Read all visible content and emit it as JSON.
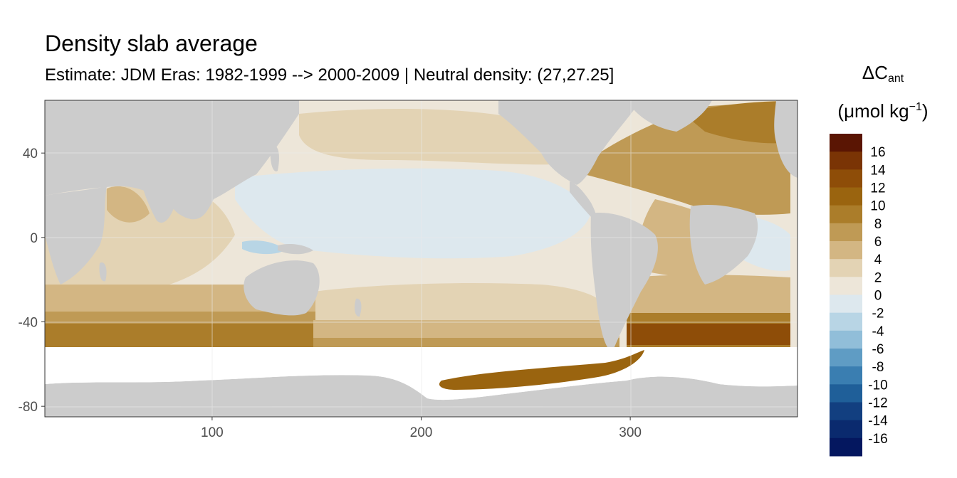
{
  "title": "Density slab average",
  "subtitle": "Estimate: JDM Eras: 1982-1999 --> 2000-2009 | Neutral density: (27,27.25]",
  "legend": {
    "title_symbol": "ΔC",
    "title_sub": "ant",
    "unit_open": "(μmol kg",
    "unit_sup": "−1",
    "unit_close": ")",
    "bins": [
      {
        "label": "16",
        "color": "#5a1503"
      },
      {
        "label": "14",
        "color": "#7a3405"
      },
      {
        "label": "12",
        "color": "#8e4d08"
      },
      {
        "label": "10",
        "color": "#9a640f"
      },
      {
        "label": "8",
        "color": "#ab7d2a"
      },
      {
        "label": "6",
        "color": "#bf9a55"
      },
      {
        "label": "4",
        "color": "#d3b683"
      },
      {
        "label": "2",
        "color": "#e3d3b4"
      },
      {
        "label": "0",
        "color": "#ede6d9"
      },
      {
        "label": "-2",
        "color": "#dde8ee"
      },
      {
        "label": "-4",
        "color": "#b8d5e5"
      },
      {
        "label": "-6",
        "color": "#91bed9"
      },
      {
        "label": "-8",
        "color": "#5f9cc4"
      },
      {
        "label": "-10",
        "color": "#3a7eb1"
      },
      {
        "label": "-12",
        "color": "#1f5f99"
      },
      {
        "label": "-14",
        "color": "#123f80"
      },
      {
        "label": "-16",
        "color": "#0a2a6e"
      },
      {
        "label": "",
        "color": "#04175f"
      }
    ]
  },
  "axes": {
    "x_ticks": [
      100,
      200,
      300
    ],
    "y_ticks": [
      40,
      0,
      -40,
      -80
    ],
    "xlim": [
      20,
      380
    ],
    "ylim": [
      -85,
      65
    ]
  },
  "colors": {
    "land": "#cccccc",
    "no_data": "#ffffff",
    "grid": "#ebebeb"
  }
}
